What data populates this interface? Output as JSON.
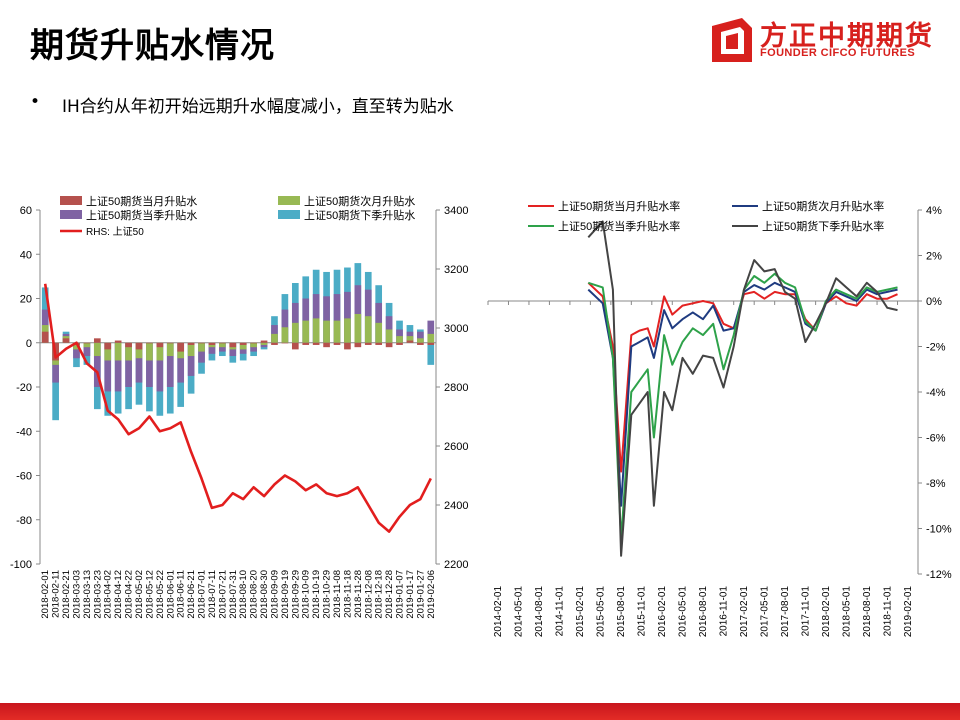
{
  "header": {
    "title": "期货升贴水情况",
    "logo_name": "方正中期期货",
    "logo_sub": "FOUNDER CIFCO FUTURES",
    "logo_icon": "founder-logo-icon",
    "brand_color": "#d7201d"
  },
  "bullet": {
    "dot": "•",
    "text": "IH合约从年初开始远期升水幅度减小，直至转为贴水"
  },
  "chart_data": [
    {
      "type": "bar",
      "y_left": {
        "range": [
          -100,
          60
        ],
        "ticks": [
          "60",
          "40",
          "20",
          "0",
          "-20",
          "-40",
          "-60",
          "-80",
          "-100"
        ]
      },
      "y_right": {
        "range": [
          2200,
          3400
        ],
        "ticks": [
          "3400",
          "3200",
          "3000",
          "2800",
          "2600",
          "2400",
          "2200"
        ]
      },
      "x_tick_labels": [
        "2018-02-01",
        "2018-02-11",
        "2018-02-21",
        "2018-03-03",
        "2018-03-13",
        "2018-03-23",
        "2018-04-02",
        "2018-04-12",
        "2018-04-22",
        "2018-05-02",
        "2018-05-12",
        "2018-05-22",
        "2018-06-01",
        "2018-06-11",
        "2018-06-21",
        "2018-07-01",
        "2018-07-11",
        "2018-07-21",
        "2018-07-31",
        "2018-08-10",
        "2018-08-20",
        "2018-08-30",
        "2018-09-09",
        "2018-09-19",
        "2018-09-29",
        "2018-10-09",
        "2018-10-19",
        "2018-10-29",
        "2018-11-08",
        "2018-11-18",
        "2018-11-28",
        "2018-12-08",
        "2018-12-18",
        "2018-12-28",
        "2019-01-07",
        "2019-01-17",
        "2019-01-27",
        "2019-02-06"
      ],
      "legend": [
        "上证50期货当月升贴水",
        "上证50期货次月升贴水",
        "上证50期货当季升贴水",
        "上证50期货下季升贴水",
        "RHS: 上证50"
      ],
      "series": [
        {
          "name": "上证50期货当月升贴水",
          "color": "#b5514d",
          "values": [
            5,
            -8,
            2,
            -1,
            0,
            2,
            -3,
            1,
            -2,
            -3,
            0,
            -2,
            0,
            -4,
            -1,
            0,
            -1,
            0,
            -2,
            -1,
            0,
            1,
            -1,
            0,
            -3,
            -1,
            -1,
            -2,
            -1,
            -3,
            -2,
            -1,
            -1,
            -2,
            -1,
            1,
            -1,
            -1
          ]
        },
        {
          "name": "上证50期货次月升贴水",
          "color": "#98b954",
          "values": [
            8,
            -10,
            3,
            -3,
            -2,
            -6,
            -8,
            -8,
            -8,
            -7,
            -8,
            -8,
            -6,
            -7,
            -6,
            -4,
            -2,
            -2,
            -3,
            -3,
            -2,
            -1,
            4,
            7,
            9,
            10,
            11,
            10,
            10,
            11,
            13,
            12,
            9,
            6,
            3,
            3,
            2,
            4
          ]
        },
        {
          "name": "上证50期货当季升贴水",
          "color": "#7f63a3",
          "values": [
            15,
            -18,
            4,
            -7,
            -6,
            -20,
            -22,
            -22,
            -20,
            -18,
            -20,
            -22,
            -20,
            -18,
            -15,
            -9,
            -5,
            -4,
            -6,
            -5,
            -4,
            -2,
            8,
            15,
            18,
            20,
            22,
            21,
            22,
            23,
            26,
            24,
            18,
            12,
            6,
            5,
            5,
            10
          ]
        },
        {
          "name": "上证50期货下季升贴水",
          "color": "#4bacc6",
          "values": [
            25,
            -35,
            5,
            -11,
            -10,
            -30,
            -33,
            -32,
            -30,
            -28,
            -31,
            -33,
            -32,
            -29,
            -23,
            -14,
            -8,
            -6,
            -9,
            -8,
            -6,
            -3,
            12,
            22,
            27,
            30,
            33,
            32,
            33,
            34,
            36,
            32,
            26,
            18,
            10,
            8,
            6,
            -10
          ]
        },
        {
          "name": "RHS: 上证50",
          "color": "#e21e1e",
          "axis": "right",
          "values": [
            3150,
            2900,
            2930,
            2950,
            2880,
            2850,
            2720,
            2690,
            2640,
            2660,
            2700,
            2650,
            2660,
            2680,
            2580,
            2490,
            2390,
            2400,
            2440,
            2420,
            2460,
            2430,
            2470,
            2500,
            2480,
            2450,
            2470,
            2440,
            2430,
            2440,
            2460,
            2400,
            2340,
            2310,
            2360,
            2400,
            2420,
            2490
          ]
        }
      ]
    },
    {
      "type": "line",
      "y_right": {
        "range": [
          -12,
          4
        ],
        "ticks": [
          "4%",
          "2%",
          "0%",
          "-2%",
          "-4%",
          "-6%",
          "-8%",
          "-10%",
          "-12%"
        ]
      },
      "x_tick_labels": [
        "2014-02-01",
        "2014-05-01",
        "2014-08-01",
        "2014-11-01",
        "2015-02-01",
        "2015-05-01",
        "2015-08-01",
        "2015-11-01",
        "2016-02-01",
        "2016-05-01",
        "2016-08-01",
        "2016-11-01",
        "2017-02-01",
        "2017-05-01",
        "2017-08-01",
        "2017-11-01",
        "2018-02-01",
        "2018-05-01",
        "2018-08-01",
        "2018-11-01",
        "2019-02-01"
      ],
      "x": [
        4.9,
        5.6,
        6.1,
        6.5,
        7.0,
        7.4,
        7.8,
        8.1,
        8.6,
        9.0,
        9.5,
        10.0,
        10.5,
        11.0,
        11.5,
        12.0,
        12.5,
        13.0,
        13.5,
        14.0,
        14.5,
        15.0,
        15.5,
        16.0,
        16.5,
        17.0,
        17.5,
        18.0,
        18.5,
        19.0,
        19.5,
        20.0
      ],
      "legend": [
        "上证50期货当月升贴水率",
        "上证50期货次月升贴水率",
        "上证50期货当季升贴水率",
        "上证50期货下季升贴水率"
      ],
      "series": [
        {
          "name": "上证50期货当月升贴水率",
          "color": "#e32222",
          "values": [
            0.8,
            0.2,
            -2.0,
            -7.5,
            -1.5,
            -1.3,
            -1.2,
            -2.0,
            0.2,
            -0.6,
            -0.2,
            -0.1,
            0.0,
            -0.1,
            -1.0,
            -1.2,
            0.3,
            0.4,
            0.1,
            0.4,
            0.3,
            0.3,
            -0.8,
            -1.3,
            -0.1,
            0.2,
            -0.1,
            -0.2,
            0.3,
            0.1,
            0.1,
            0.3
          ]
        },
        {
          "name": "上证50期货次月升贴水率",
          "color": "#1f3b80",
          "values": [
            0.5,
            -0.1,
            -2.5,
            -9.0,
            -2.0,
            -1.8,
            -1.6,
            -2.5,
            -0.4,
            -1.2,
            -0.8,
            -0.5,
            -0.8,
            -0.2,
            -1.3,
            -1.2,
            0.4,
            0.7,
            0.5,
            0.8,
            0.6,
            0.4,
            -1.0,
            -1.3,
            -0.1,
            0.4,
            0.2,
            0.0,
            0.5,
            0.3,
            0.4,
            0.5
          ]
        },
        {
          "name": "上证50期货当季升贴水率",
          "color": "#2ea24a",
          "values": [
            0.8,
            0.6,
            -2.5,
            -10.5,
            -4.0,
            -3.5,
            -3.0,
            -6.0,
            -1.5,
            -2.8,
            -1.8,
            -1.2,
            -1.5,
            -1.0,
            -3.0,
            -1.5,
            0.5,
            1.1,
            0.8,
            1.2,
            0.8,
            0.6,
            -0.9,
            -1.3,
            0.0,
            0.5,
            0.3,
            0.1,
            0.6,
            0.4,
            0.5,
            0.6
          ]
        },
        {
          "name": "上证50期货下季升贴水率",
          "color": "#444444",
          "values": [
            2.8,
            3.5,
            0.5,
            -11.2,
            -5.0,
            -4.5,
            -4.0,
            -9.0,
            -4.0,
            -4.8,
            -2.5,
            -3.2,
            -2.4,
            -2.5,
            -3.8,
            -2.0,
            0.5,
            1.8,
            1.3,
            1.4,
            0.4,
            0.1,
            -1.8,
            -1.0,
            -0.1,
            1.0,
            0.6,
            0.2,
            0.8,
            0.4,
            -0.3,
            -0.4
          ]
        }
      ]
    }
  ]
}
